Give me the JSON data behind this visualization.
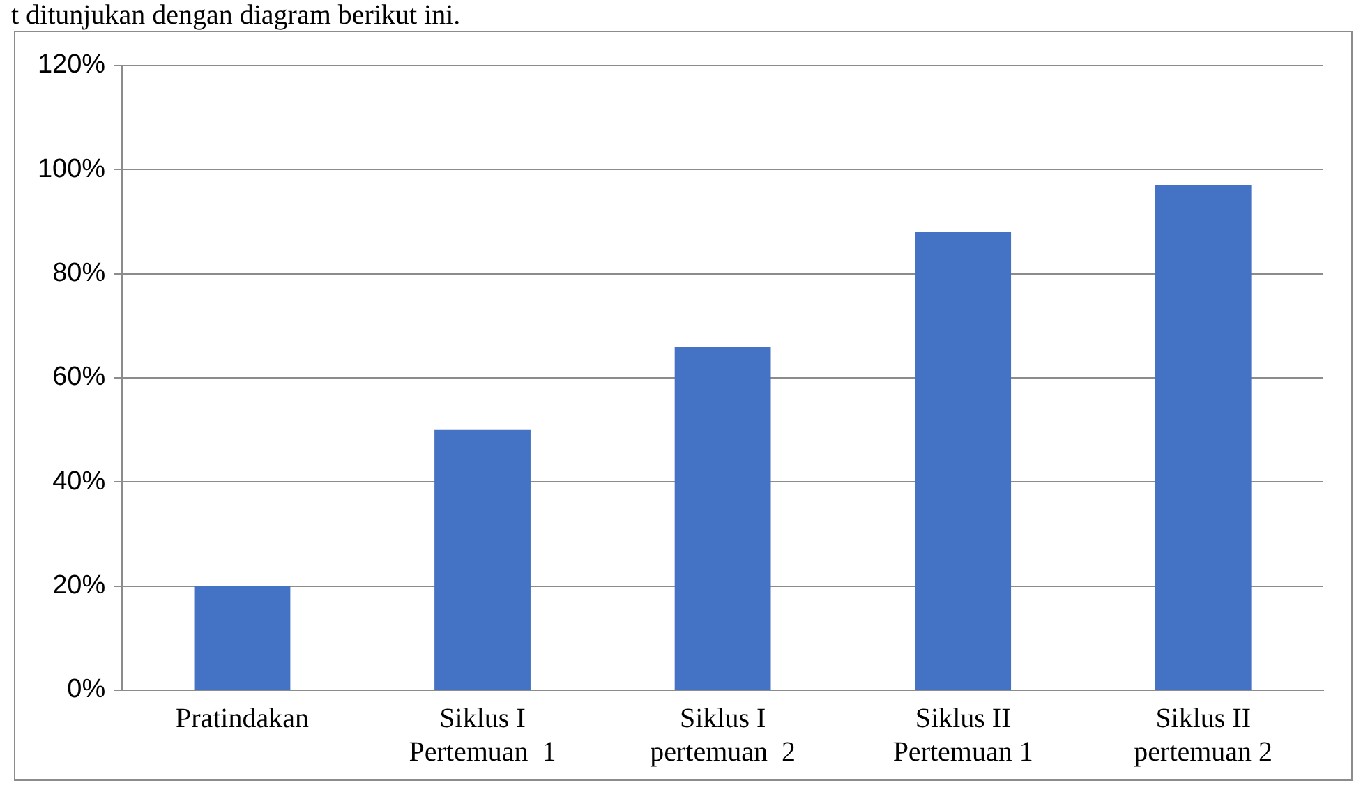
{
  "chart_data": {
    "type": "bar",
    "annotations": [
      "t ditunjukan dengan diagram berikut ini."
    ],
    "categories": [
      "Pratindakan",
      "Siklus I Pertemuan  1",
      "Siklus I pertemuan  2",
      "Siklus II Pertemuan 1",
      "Siklus II pertemuan 2"
    ],
    "values": [
      20,
      50,
      66,
      88,
      97
    ],
    "color": "#4472c4",
    "ylim": [
      0,
      120
    ],
    "yticks": [
      {
        "value": 0,
        "label": "0%"
      },
      {
        "value": 20,
        "label": "20%"
      },
      {
        "value": 40,
        "label": "40%"
      },
      {
        "value": 60,
        "label": "60%"
      },
      {
        "value": 80,
        "label": "80%"
      },
      {
        "value": 100,
        "label": "100%"
      },
      {
        "value": 120,
        "label": "120%"
      }
    ],
    "grid": "y"
  }
}
